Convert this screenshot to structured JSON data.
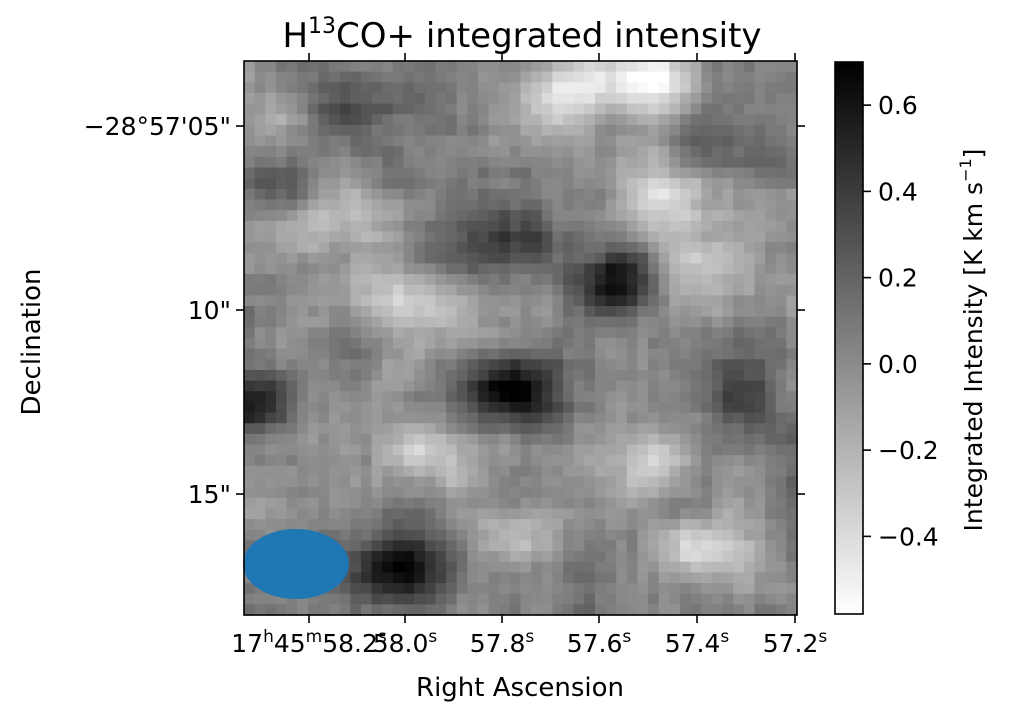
{
  "chart_data": {
    "type": "heatmap",
    "title": {
      "base": "H",
      "sup": "13",
      "rest": "CO+ integrated intensity"
    },
    "xlabel": "Right Ascension",
    "ylabel": "Declination",
    "x_ticks": [
      {
        "value": "17h45m58.2s",
        "parts": [
          [
            "17",
            ""
          ],
          [
            "h",
            "sup"
          ],
          [
            "45",
            ""
          ],
          [
            "m",
            "sup"
          ],
          [
            "58.2",
            ""
          ],
          [
            "s",
            "sup"
          ]
        ]
      },
      {
        "value": "58.0s",
        "parts": [
          [
            "58.0",
            ""
          ],
          [
            "s",
            "sup"
          ]
        ]
      },
      {
        "value": "57.8s",
        "parts": [
          [
            "57.8",
            ""
          ],
          [
            "s",
            "sup"
          ]
        ]
      },
      {
        "value": "57.6s",
        "parts": [
          [
            "57.6",
            ""
          ],
          [
            "s",
            "sup"
          ]
        ]
      },
      {
        "value": "57.4s",
        "parts": [
          [
            "57.4",
            ""
          ],
          [
            "s",
            "sup"
          ]
        ]
      },
      {
        "value": "57.2s",
        "parts": [
          [
            "57.2",
            ""
          ],
          [
            "s",
            "sup"
          ]
        ]
      }
    ],
    "y_ticks": [
      "−28°57'05\"",
      "10\"",
      "15\""
    ],
    "colorbar": {
      "label": {
        "base": "Integrated Intensity [K km s",
        "sup": "−1",
        "rest": "]"
      },
      "vmin": -0.58,
      "vmax": 0.7,
      "ticks": [
        "0.6",
        "0.4",
        "0.2",
        "0.0",
        "−0.2",
        "−0.4"
      ],
      "tick_values": [
        0.6,
        0.4,
        0.2,
        0.0,
        -0.2,
        -0.4
      ],
      "colormap": "gray_r"
    },
    "grid": false,
    "beam": {
      "shape": "ellipse",
      "color": "#1f77b4",
      "position": "bottom-left"
    },
    "image_grid": {
      "rows": 52,
      "cols": 52
    },
    "features": [
      {
        "ra_frac": 0.48,
        "dec_frac": 0.59,
        "intensity": 0.68
      },
      {
        "ra_frac": 0.67,
        "dec_frac": 0.4,
        "intensity": 0.55
      },
      {
        "ra_frac": 0.48,
        "dec_frac": 0.32,
        "intensity": 0.45
      },
      {
        "ra_frac": 0.27,
        "dec_frac": 0.92,
        "intensity": 0.55
      },
      {
        "ra_frac": 0.03,
        "dec_frac": 0.62,
        "intensity": 0.42
      },
      {
        "ra_frac": 0.9,
        "dec_frac": 0.6,
        "intensity": 0.35
      },
      {
        "ra_frac": 0.19,
        "dec_frac": 0.07,
        "intensity": 0.32
      },
      {
        "ra_frac": 0.88,
        "dec_frac": 0.16,
        "intensity": 0.25
      },
      {
        "ra_frac": 0.08,
        "dec_frac": 0.22,
        "intensity": 0.2
      },
      {
        "ra_frac": 0.58,
        "dec_frac": 0.06,
        "intensity": -0.52
      },
      {
        "ra_frac": 0.74,
        "dec_frac": 0.03,
        "intensity": -0.58
      },
      {
        "ra_frac": 0.77,
        "dec_frac": 0.24,
        "intensity": -0.45
      },
      {
        "ra_frac": 0.82,
        "dec_frac": 0.37,
        "intensity": -0.38
      },
      {
        "ra_frac": 0.31,
        "dec_frac": 0.44,
        "intensity": -0.4
      },
      {
        "ra_frac": 0.18,
        "dec_frac": 0.28,
        "intensity": -0.3
      },
      {
        "ra_frac": 0.34,
        "dec_frac": 0.71,
        "intensity": -0.3
      },
      {
        "ra_frac": 0.72,
        "dec_frac": 0.72,
        "intensity": -0.35
      },
      {
        "ra_frac": 0.82,
        "dec_frac": 0.88,
        "intensity": -0.42
      },
      {
        "ra_frac": 0.5,
        "dec_frac": 0.85,
        "intensity": -0.2
      }
    ]
  }
}
